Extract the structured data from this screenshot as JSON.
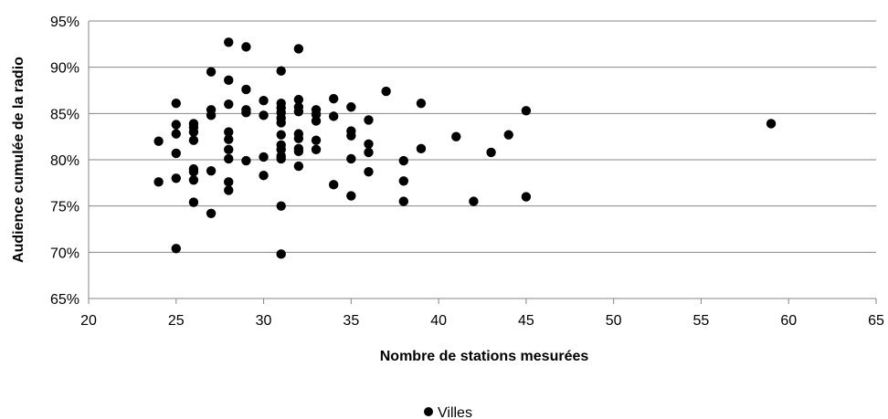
{
  "chart_data": {
    "type": "scatter",
    "title": "",
    "xlabel": "Nombre de stations mesurées",
    "ylabel": "Audience cumulée de la radio",
    "xlim": [
      20,
      65
    ],
    "ylim": [
      0.65,
      0.95
    ],
    "x_ticks": [
      "20",
      "25",
      "30",
      "35",
      "40",
      "45",
      "50",
      "55",
      "60",
      "65"
    ],
    "y_ticks": [
      "65%",
      "70%",
      "75%",
      "80%",
      "85%",
      "90%",
      "95%"
    ],
    "grid": "horizontal",
    "legend_position": "bottom",
    "marker_color": "#000000",
    "series": [
      {
        "name": "Villes",
        "points": [
          [
            24,
            0.82
          ],
          [
            24,
            0.776
          ],
          [
            25,
            0.861
          ],
          [
            25,
            0.838
          ],
          [
            25,
            0.828
          ],
          [
            25,
            0.807
          ],
          [
            25,
            0.78
          ],
          [
            25,
            0.704
          ],
          [
            26,
            0.839
          ],
          [
            26,
            0.835
          ],
          [
            26,
            0.83
          ],
          [
            26,
            0.821
          ],
          [
            26,
            0.79
          ],
          [
            26,
            0.787
          ],
          [
            26,
            0.778
          ],
          [
            26,
            0.754
          ],
          [
            27,
            0.895
          ],
          [
            27,
            0.854
          ],
          [
            27,
            0.848
          ],
          [
            27,
            0.788
          ],
          [
            27,
            0.742
          ],
          [
            28,
            0.927
          ],
          [
            28,
            0.886
          ],
          [
            28,
            0.86
          ],
          [
            28,
            0.83
          ],
          [
            28,
            0.822
          ],
          [
            28,
            0.811
          ],
          [
            28,
            0.801
          ],
          [
            28,
            0.776
          ],
          [
            28,
            0.767
          ],
          [
            29,
            0.922
          ],
          [
            29,
            0.876
          ],
          [
            29,
            0.854
          ],
          [
            29,
            0.851
          ],
          [
            29,
            0.799
          ],
          [
            30,
            0.864
          ],
          [
            30,
            0.848
          ],
          [
            30,
            0.803
          ],
          [
            30,
            0.783
          ],
          [
            31,
            0.896
          ],
          [
            31,
            0.861
          ],
          [
            31,
            0.856
          ],
          [
            31,
            0.851
          ],
          [
            31,
            0.845
          ],
          [
            31,
            0.84
          ],
          [
            31,
            0.827
          ],
          [
            31,
            0.816
          ],
          [
            31,
            0.811
          ],
          [
            31,
            0.804
          ],
          [
            31,
            0.801
          ],
          [
            31,
            0.75
          ],
          [
            31,
            0.698
          ],
          [
            32,
            0.92
          ],
          [
            32,
            0.865
          ],
          [
            32,
            0.857
          ],
          [
            32,
            0.852
          ],
          [
            32,
            0.828
          ],
          [
            32,
            0.823
          ],
          [
            32,
            0.812
          ],
          [
            32,
            0.809
          ],
          [
            32,
            0.793
          ],
          [
            33,
            0.854
          ],
          [
            33,
            0.849
          ],
          [
            33,
            0.842
          ],
          [
            33,
            0.821
          ],
          [
            33,
            0.811
          ],
          [
            34,
            0.866
          ],
          [
            34,
            0.847
          ],
          [
            34,
            0.773
          ],
          [
            35,
            0.857
          ],
          [
            35,
            0.831
          ],
          [
            35,
            0.826
          ],
          [
            35,
            0.801
          ],
          [
            35,
            0.761
          ],
          [
            36,
            0.843
          ],
          [
            36,
            0.817
          ],
          [
            36,
            0.808
          ],
          [
            36,
            0.787
          ],
          [
            37,
            0.874
          ],
          [
            38,
            0.799
          ],
          [
            38,
            0.777
          ],
          [
            38,
            0.755
          ],
          [
            39,
            0.861
          ],
          [
            39,
            0.812
          ],
          [
            41,
            0.825
          ],
          [
            42,
            0.755
          ],
          [
            43,
            0.808
          ],
          [
            44,
            0.827
          ],
          [
            45,
            0.853
          ],
          [
            45,
            0.76
          ],
          [
            59,
            0.839
          ]
        ]
      }
    ]
  }
}
